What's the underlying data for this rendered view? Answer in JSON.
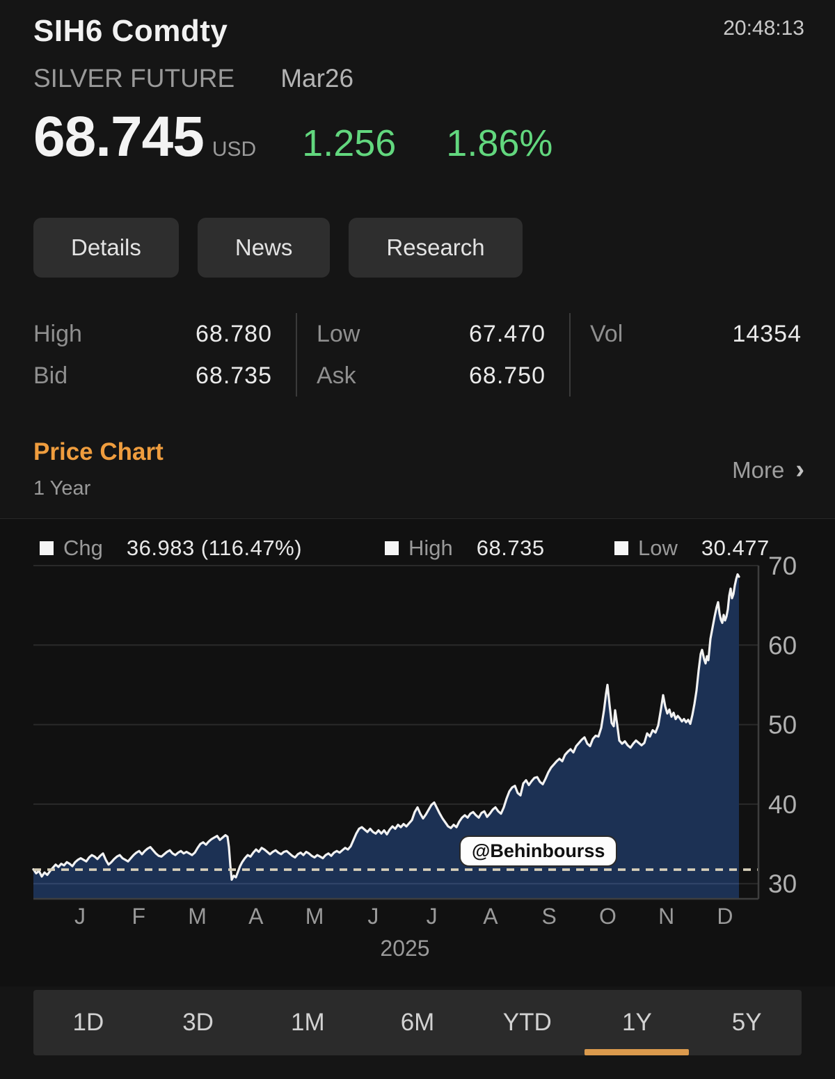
{
  "header": {
    "title": "SIH6 Comdty",
    "time": "20:48:13",
    "subtitle": "SILVER FUTURE",
    "contract": "Mar26"
  },
  "price": {
    "last": "68.745",
    "currency": "USD",
    "change": "1.256",
    "change_pct": "1.86%",
    "up_color": "#62d77e"
  },
  "tabs": [
    {
      "label": "Details"
    },
    {
      "label": "News"
    },
    {
      "label": "Research"
    }
  ],
  "stats": {
    "rows": [
      [
        {
          "label": "High",
          "value": "68.780"
        },
        {
          "label": "Low",
          "value": "67.470"
        },
        {
          "label": "Vol",
          "value": "14354"
        }
      ],
      [
        {
          "label": "Bid",
          "value": "68.735"
        },
        {
          "label": "Ask",
          "value": "68.750"
        },
        {
          "label": "",
          "value": ""
        }
      ]
    ]
  },
  "section": {
    "title": "Price Chart",
    "range_label": "1 Year",
    "more_label": "More",
    "more_chevron": "›"
  },
  "chart_data": {
    "type": "area",
    "title": "SIH6 Silver Future Mar26 - 1 Year price chart",
    "legend": [
      {
        "label": "Chg",
        "value": "36.983 (116.47%)"
      },
      {
        "label": "High",
        "value": "68.735"
      },
      {
        "label": "Low",
        "value": "30.477"
      }
    ],
    "yticks": [
      70,
      60,
      50,
      40,
      30
    ],
    "ylim": [
      28,
      70.5
    ],
    "xticks": [
      "J",
      "F",
      "M",
      "A",
      "M",
      "J",
      "J",
      "A",
      "S",
      "O",
      "N",
      "D"
    ],
    "year_label": "2025",
    "baseline_value": 31.762,
    "watermark": "@Behinbourss",
    "grid": true,
    "legend_position": "top",
    "colors": {
      "fill": "#1c3154",
      "line": "#f2f2f2",
      "baseline": "#d8d0ba",
      "grid": "#2a2a2a",
      "axis": "#3e3e3e",
      "tick_text": "#b0b0b0",
      "month_text": "#9a9a9a",
      "grid_over_fill": "#32466a"
    },
    "points": [
      [
        48,
        31.8
      ],
      [
        52,
        31.3
      ],
      [
        56,
        31.6
      ],
      [
        60,
        30.9
      ],
      [
        64,
        31.4
      ],
      [
        68,
        31.1
      ],
      [
        72,
        31.6
      ],
      [
        76,
        32.0
      ],
      [
        80,
        32.4
      ],
      [
        84,
        32.1
      ],
      [
        88,
        32.5
      ],
      [
        92,
        32.3
      ],
      [
        96,
        32.7
      ],
      [
        100,
        32.5
      ],
      [
        104,
        32.2
      ],
      [
        108,
        32.7
      ],
      [
        112,
        33.0
      ],
      [
        116,
        33.2
      ],
      [
        120,
        33.0
      ],
      [
        124,
        32.8
      ],
      [
        128,
        33.3
      ],
      [
        132,
        33.6
      ],
      [
        136,
        33.4
      ],
      [
        140,
        33.1
      ],
      [
        144,
        33.5
      ],
      [
        148,
        33.8
      ],
      [
        152,
        33.0
      ],
      [
        156,
        32.4
      ],
      [
        160,
        32.7
      ],
      [
        164,
        33.1
      ],
      [
        168,
        33.4
      ],
      [
        172,
        33.6
      ],
      [
        176,
        33.2
      ],
      [
        180,
        33.0
      ],
      [
        184,
        32.8
      ],
      [
        188,
        33.2
      ],
      [
        192,
        33.6
      ],
      [
        196,
        33.9
      ],
      [
        200,
        34.1
      ],
      [
        204,
        33.7
      ],
      [
        208,
        34.1
      ],
      [
        212,
        34.4
      ],
      [
        216,
        34.6
      ],
      [
        220,
        34.2
      ],
      [
        224,
        33.8
      ],
      [
        228,
        33.5
      ],
      [
        232,
        33.4
      ],
      [
        236,
        33.7
      ],
      [
        240,
        34.0
      ],
      [
        244,
        34.2
      ],
      [
        248,
        33.8
      ],
      [
        252,
        33.6
      ],
      [
        256,
        33.9
      ],
      [
        260,
        34.1
      ],
      [
        264,
        33.8
      ],
      [
        268,
        34.0
      ],
      [
        272,
        33.8
      ],
      [
        276,
        33.6
      ],
      [
        280,
        33.9
      ],
      [
        284,
        34.5
      ],
      [
        288,
        35.0
      ],
      [
        292,
        35.2
      ],
      [
        296,
        34.9
      ],
      [
        300,
        35.3
      ],
      [
        304,
        35.6
      ],
      [
        308,
        35.8
      ],
      [
        312,
        36.0
      ],
      [
        316,
        35.5
      ],
      [
        320,
        35.8
      ],
      [
        324,
        36.1
      ],
      [
        327,
        35.9
      ],
      [
        329,
        34.6
      ],
      [
        331,
        32.3
      ],
      [
        333,
        30.5
      ],
      [
        336,
        31.0
      ],
      [
        339,
        30.8
      ],
      [
        342,
        31.5
      ],
      [
        345,
        32.2
      ],
      [
        348,
        32.7
      ],
      [
        352,
        33.2
      ],
      [
        356,
        33.6
      ],
      [
        360,
        33.4
      ],
      [
        364,
        33.9
      ],
      [
        368,
        34.3
      ],
      [
        372,
        34.0
      ],
      [
        376,
        34.5
      ],
      [
        380,
        34.3
      ],
      [
        384,
        34.0
      ],
      [
        388,
        33.7
      ],
      [
        392,
        34.0
      ],
      [
        396,
        34.2
      ],
      [
        400,
        33.9
      ],
      [
        404,
        33.7
      ],
      [
        408,
        34.0
      ],
      [
        412,
        34.1
      ],
      [
        416,
        33.8
      ],
      [
        420,
        33.5
      ],
      [
        424,
        33.3
      ],
      [
        428,
        33.7
      ],
      [
        432,
        33.9
      ],
      [
        436,
        33.6
      ],
      [
        440,
        34.0
      ],
      [
        444,
        33.8
      ],
      [
        448,
        33.5
      ],
      [
        452,
        33.3
      ],
      [
        456,
        33.6
      ],
      [
        460,
        33.4
      ],
      [
        464,
        33.2
      ],
      [
        468,
        33.6
      ],
      [
        472,
        33.8
      ],
      [
        476,
        33.5
      ],
      [
        480,
        33.9
      ],
      [
        484,
        34.1
      ],
      [
        488,
        33.9
      ],
      [
        492,
        34.2
      ],
      [
        496,
        34.5
      ],
      [
        500,
        34.3
      ],
      [
        504,
        34.7
      ],
      [
        508,
        35.5
      ],
      [
        512,
        36.3
      ],
      [
        516,
        36.9
      ],
      [
        520,
        37.1
      ],
      [
        524,
        36.8
      ],
      [
        528,
        36.5
      ],
      [
        532,
        36.9
      ],
      [
        536,
        36.5
      ],
      [
        540,
        36.3
      ],
      [
        544,
        36.7
      ],
      [
        548,
        36.3
      ],
      [
        552,
        36.7
      ],
      [
        556,
        36.2
      ],
      [
        560,
        36.8
      ],
      [
        564,
        37.2
      ],
      [
        568,
        36.9
      ],
      [
        572,
        37.4
      ],
      [
        576,
        37.1
      ],
      [
        580,
        37.5
      ],
      [
        584,
        37.2
      ],
      [
        588,
        37.6
      ],
      [
        592,
        38.0
      ],
      [
        596,
        39.0
      ],
      [
        600,
        39.6
      ],
      [
        604,
        38.8
      ],
      [
        608,
        38.2
      ],
      [
        612,
        38.7
      ],
      [
        616,
        39.3
      ],
      [
        620,
        39.9
      ],
      [
        624,
        40.2
      ],
      [
        628,
        39.5
      ],
      [
        632,
        38.8
      ],
      [
        636,
        38.2
      ],
      [
        640,
        37.7
      ],
      [
        644,
        37.2
      ],
      [
        648,
        37.0
      ],
      [
        652,
        37.4
      ],
      [
        656,
        37.1
      ],
      [
        660,
        37.8
      ],
      [
        664,
        38.3
      ],
      [
        668,
        38.6
      ],
      [
        672,
        38.3
      ],
      [
        676,
        38.8
      ],
      [
        680,
        39.0
      ],
      [
        684,
        38.6
      ],
      [
        688,
        38.3
      ],
      [
        692,
        38.9
      ],
      [
        696,
        39.1
      ],
      [
        700,
        38.4
      ],
      [
        704,
        38.8
      ],
      [
        708,
        39.3
      ],
      [
        712,
        39.6
      ],
      [
        716,
        39.1
      ],
      [
        720,
        38.8
      ],
      [
        724,
        39.6
      ],
      [
        728,
        40.7
      ],
      [
        732,
        41.6
      ],
      [
        736,
        42.1
      ],
      [
        740,
        42.3
      ],
      [
        744,
        41.4
      ],
      [
        748,
        41.1
      ],
      [
        752,
        42.6
      ],
      [
        756,
        43.0
      ],
      [
        760,
        42.4
      ],
      [
        764,
        42.9
      ],
      [
        768,
        43.3
      ],
      [
        772,
        43.4
      ],
      [
        776,
        42.8
      ],
      [
        780,
        42.5
      ],
      [
        784,
        43.2
      ],
      [
        788,
        44.0
      ],
      [
        792,
        44.6
      ],
      [
        796,
        45.0
      ],
      [
        800,
        45.4
      ],
      [
        804,
        45.7
      ],
      [
        808,
        45.4
      ],
      [
        812,
        46.2
      ],
      [
        816,
        46.6
      ],
      [
        820,
        46.9
      ],
      [
        824,
        46.5
      ],
      [
        828,
        47.3
      ],
      [
        832,
        47.7
      ],
      [
        836,
        48.1
      ],
      [
        840,
        48.4
      ],
      [
        844,
        47.6
      ],
      [
        848,
        47.3
      ],
      [
        852,
        48.2
      ],
      [
        856,
        48.6
      ],
      [
        860,
        48.5
      ],
      [
        864,
        49.6
      ],
      [
        868,
        51.8
      ],
      [
        871,
        53.9
      ],
      [
        873,
        55.0
      ],
      [
        876,
        52.5
      ],
      [
        879,
        50.2
      ],
      [
        882,
        49.8
      ],
      [
        884,
        51.8
      ],
      [
        887,
        50.0
      ],
      [
        890,
        48.0
      ],
      [
        894,
        47.6
      ],
      [
        898,
        47.9
      ],
      [
        902,
        47.4
      ],
      [
        906,
        47.1
      ],
      [
        910,
        47.6
      ],
      [
        914,
        48.0
      ],
      [
        918,
        47.7
      ],
      [
        922,
        47.4
      ],
      [
        926,
        47.7
      ],
      [
        930,
        48.9
      ],
      [
        934,
        48.5
      ],
      [
        938,
        49.3
      ],
      [
        942,
        49.0
      ],
      [
        946,
        49.9
      ],
      [
        950,
        52.0
      ],
      [
        953,
        53.7
      ],
      [
        956,
        52.3
      ],
      [
        959,
        51.4
      ],
      [
        962,
        51.9
      ],
      [
        965,
        51.0
      ],
      [
        968,
        51.5
      ],
      [
        971,
        50.7
      ],
      [
        974,
        51.1
      ],
      [
        977,
        50.8
      ],
      [
        980,
        50.4
      ],
      [
        983,
        50.7
      ],
      [
        986,
        50.3
      ],
      [
        989,
        50.6
      ],
      [
        992,
        50.1
      ],
      [
        995,
        51.2
      ],
      [
        998,
        52.6
      ],
      [
        1001,
        54.3
      ],
      [
        1004,
        56.8
      ],
      [
        1007,
        58.9
      ],
      [
        1009,
        59.4
      ],
      [
        1012,
        58.2
      ],
      [
        1014,
        57.7
      ],
      [
        1016,
        58.6
      ],
      [
        1018,
        58.1
      ],
      [
        1021,
        60.8
      ],
      [
        1024,
        62.2
      ],
      [
        1027,
        63.6
      ],
      [
        1030,
        64.8
      ],
      [
        1032,
        65.4
      ],
      [
        1034,
        64.0
      ],
      [
        1036,
        63.2
      ],
      [
        1038,
        62.8
      ],
      [
        1040,
        63.8
      ],
      [
        1042,
        63.1
      ],
      [
        1044,
        63.6
      ],
      [
        1046,
        64.5
      ],
      [
        1048,
        66.2
      ],
      [
        1050,
        67.1
      ],
      [
        1052,
        65.9
      ],
      [
        1054,
        66.4
      ],
      [
        1056,
        67.5
      ],
      [
        1058,
        68.3
      ],
      [
        1060,
        68.9
      ],
      [
        1062,
        68.6
      ]
    ]
  },
  "range_bar": {
    "options": [
      "1D",
      "3D",
      "1M",
      "6M",
      "YTD",
      "1Y",
      "5Y"
    ],
    "active": "1Y",
    "active_color": "#db9a4d"
  }
}
